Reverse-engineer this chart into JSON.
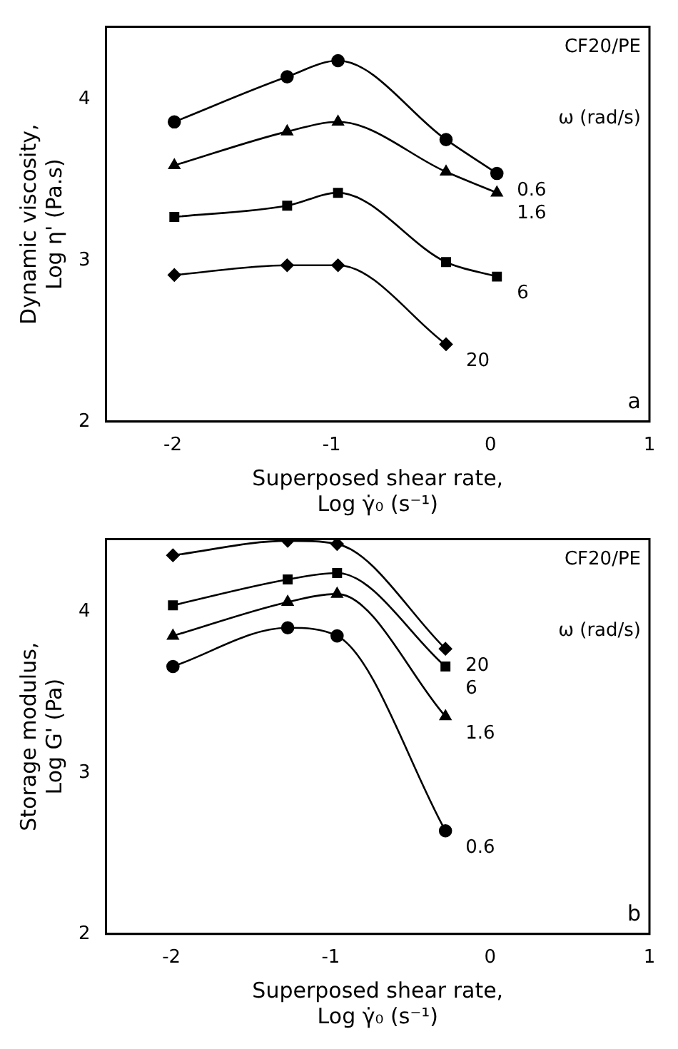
{
  "chart_data": [
    {
      "type": "line",
      "xlabel": [
        "Superposed shear rate,",
        "Log γ̇₀ (s⁻¹)"
      ],
      "ylabel": [
        "Dynamic viscosity,",
        "Log η' (Pa.s)"
      ],
      "legend_title": "ω (rad/s)",
      "annotations": [
        "CF20/PE",
        "a"
      ],
      "xlim": [
        -2.42,
        1
      ],
      "ylim": [
        2,
        4.45
      ],
      "xticks": [
        -2,
        -1,
        0,
        1
      ],
      "yticks": [
        2,
        3,
        4
      ],
      "grid": false,
      "legend": false,
      "series": [
        {
          "name": "0.6",
          "color": "#000000",
          "marker": "circle",
          "x": [
            -1.99,
            -1.28,
            -0.96,
            -0.28,
            0.04
          ],
          "values": [
            3.86,
            4.14,
            4.24,
            3.75,
            3.54
          ]
        },
        {
          "name": "1.6",
          "color": "#000000",
          "marker": "triangle",
          "x": [
            -1.99,
            -1.28,
            -0.96,
            -0.28,
            0.04
          ],
          "values": [
            3.59,
            3.8,
            3.86,
            3.55,
            3.42
          ]
        },
        {
          "name": "6",
          "color": "#000000",
          "marker": "square",
          "x": [
            -1.99,
            -1.28,
            -0.96,
            -0.28,
            0.04
          ],
          "values": [
            3.27,
            3.34,
            3.42,
            2.99,
            2.9
          ]
        },
        {
          "name": "20",
          "color": "#000000",
          "marker": "diamond",
          "x": [
            -1.99,
            -1.28,
            -0.96,
            -0.28
          ],
          "values": [
            2.91,
            2.97,
            2.97,
            2.48
          ]
        }
      ]
    },
    {
      "type": "line",
      "xlabel": [
        "Superposed shear rate,",
        "Log γ̇₀ (s⁻¹)"
      ],
      "ylabel": [
        "Storage modulus,",
        "Log G' (Pa)"
      ],
      "legend_title": "ω (rad/s)",
      "annotations": [
        "CF20/PE",
        "b"
      ],
      "xlim": [
        -2.41,
        1
      ],
      "ylim": [
        2,
        4.45
      ],
      "xticks": [
        -2,
        -1,
        0,
        1
      ],
      "yticks": [
        2,
        3,
        4
      ],
      "grid": false,
      "legend": false,
      "series": [
        {
          "name": "20",
          "color": "#000000",
          "marker": "diamond",
          "x": [
            -1.99,
            -1.27,
            -0.96,
            -0.28
          ],
          "values": [
            4.35,
            4.44,
            4.42,
            3.77
          ]
        },
        {
          "name": "6",
          "color": "#000000",
          "marker": "square",
          "x": [
            -1.99,
            -1.27,
            -0.96,
            -0.28
          ],
          "values": [
            4.04,
            4.2,
            4.24,
            3.66
          ]
        },
        {
          "name": "1.6",
          "color": "#000000",
          "marker": "triangle",
          "x": [
            -1.99,
            -1.27,
            -0.96,
            -0.28
          ],
          "values": [
            3.85,
            4.06,
            4.11,
            3.35
          ]
        },
        {
          "name": "0.6",
          "color": "#000000",
          "marker": "circle",
          "x": [
            -1.99,
            -1.27,
            -0.96,
            -0.28
          ],
          "values": [
            3.66,
            3.9,
            3.85,
            2.64
          ]
        }
      ]
    }
  ]
}
